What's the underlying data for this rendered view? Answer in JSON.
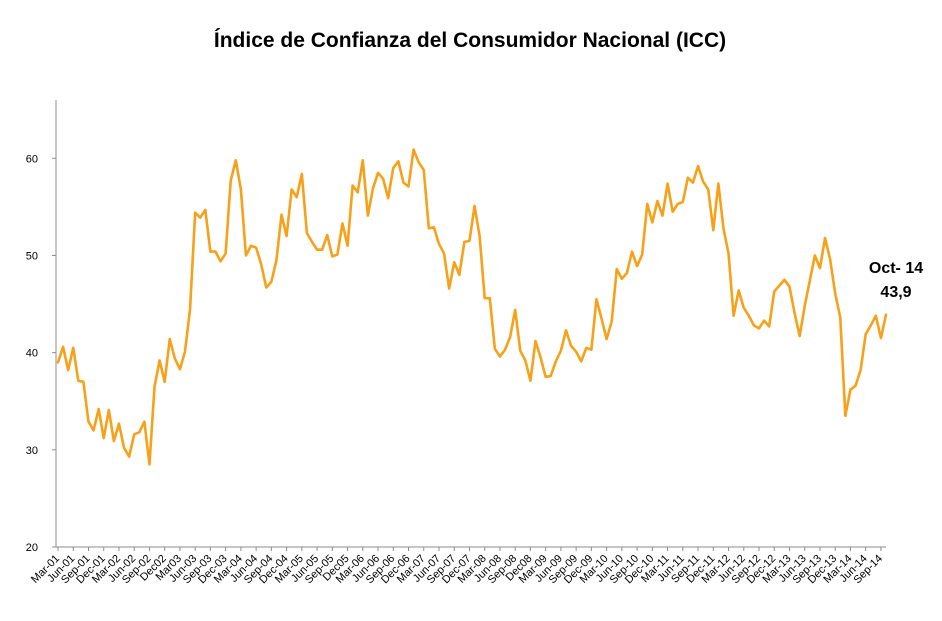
{
  "chart_data": {
    "type": "line",
    "title": "Índice de Confianza del Consumidor Nacional (ICC)",
    "xlabel": "",
    "ylabel": "",
    "ylim": [
      20,
      66
    ],
    "yticks": [
      20,
      30,
      40,
      50,
      60
    ],
    "grid": false,
    "legend": "none",
    "line_color": "#F7A11A",
    "x": [
      "Mar-01",
      "Apr-01",
      "May-01",
      "Jun-01",
      "Jul-01",
      "Aug-01",
      "Sep-01",
      "Oct-01",
      "Nov-01",
      "Dec-01",
      "Jan-02",
      "Feb-02",
      "Mar-02",
      "Apr-02",
      "May-02",
      "Jun-02",
      "Jul-02",
      "Aug-02",
      "Sep-02",
      "Oct-02",
      "Nov-02",
      "Dec-02",
      "Jan-03",
      "Feb-03",
      "Mar-03",
      "Apr-03",
      "May-03",
      "Jun-03",
      "Jul-03",
      "Aug-03",
      "Sep-03",
      "Oct-03",
      "Nov-03",
      "Dec-03",
      "Jan-04",
      "Feb-04",
      "Mar-04",
      "Apr-04",
      "May-04",
      "Jun-04",
      "Jul-04",
      "Aug-04",
      "Sep-04",
      "Oct-04",
      "Nov-04",
      "Dec-04",
      "Jan-05",
      "Feb-05",
      "Mar-05",
      "Apr-05",
      "May-05",
      "Jun-05",
      "Jul-05",
      "Aug-05",
      "Sep-05",
      "Oct-05",
      "Nov-05",
      "Dec-05",
      "Jan-06",
      "Feb-06",
      "Mar-06",
      "Apr-06",
      "May-06",
      "Jun-06",
      "Jul-06",
      "Aug-06",
      "Sep-06",
      "Oct-06",
      "Nov-06",
      "Dec-06",
      "Jan-07",
      "Feb-07",
      "Mar-07",
      "Apr-07",
      "May-07",
      "Jun-07",
      "Jul-07",
      "Aug-07",
      "Sep-07",
      "Oct-07",
      "Nov-07",
      "Dec-07",
      "Jan-08",
      "Feb-08",
      "Mar-08",
      "Apr-08",
      "May-08",
      "Jun-08",
      "Jul-08",
      "Aug-08",
      "Sep-08",
      "Oct-08",
      "Nov-08",
      "Dec-08",
      "Jan-09",
      "Feb-09",
      "Mar-09",
      "Apr-09",
      "May-09",
      "Jun-09",
      "Jul-09",
      "Aug-09",
      "Sep-09",
      "Oct-09",
      "Nov-09",
      "Dec-09",
      "Jan-10",
      "Feb-10",
      "Mar-10",
      "Apr-10",
      "May-10",
      "Jun-10",
      "Jul-10",
      "Aug-10",
      "Sep-10",
      "Oct-10",
      "Nov-10",
      "Dec-10",
      "Jan-11",
      "Feb-11",
      "Mar-11",
      "Apr-11",
      "May-11",
      "Jun-11",
      "Jul-11",
      "Aug-11",
      "Sep-11",
      "Oct-11",
      "Nov-11",
      "Dec-11",
      "Jan-12",
      "Feb-12",
      "Mar-12",
      "Apr-12",
      "May-12",
      "Jun-12",
      "Jul-12",
      "Aug-12",
      "Sep-12",
      "Oct-12",
      "Nov-12",
      "Dec-12",
      "Jan-13",
      "Feb-13",
      "Mar-13",
      "Apr-13",
      "May-13",
      "Jun-13",
      "Jul-13",
      "Aug-13",
      "Sep-13",
      "Oct-13",
      "Nov-13",
      "Dec-13",
      "Jan-14",
      "Feb-14",
      "Mar-14",
      "Apr-14",
      "May-14",
      "Jun-14",
      "Jul-14",
      "Aug-14",
      "Sep-14",
      "Oct-14"
    ],
    "xtick_labels": [
      "Mar-01",
      "Jun-01",
      "Sep-01",
      "Dec-01",
      "Mar-02",
      "Jun-02",
      "Sep-02",
      "Dec02",
      "Mar03",
      "Jun-03",
      "Sep-03",
      "Dec-03",
      "Mar-04",
      "Jun-04",
      "Sep-04",
      "Dec-04",
      "Mar-05",
      "Jun-05",
      "Sep-05",
      "Dec05",
      "Mar-06",
      "Jun-06",
      "Sep-06",
      "Dec-06",
      "Mar-07",
      "Jun-07",
      "Sep-07",
      "Dec-07",
      "Mar-08",
      "Jun-08",
      "Sep-08",
      "Dec08",
      "Mar-09",
      "Jun-09",
      "Sep-09",
      "Dec-09",
      "Mar-10",
      "Jun-10",
      "Sep-10",
      "Dec-10",
      "Mar-11",
      "Jun-11",
      "Sep-11",
      "Dec-11",
      "Mar-12",
      "Jun-12",
      "Sep-12",
      "Dec-12",
      "Mar-13",
      "Jun-13",
      "Sep-13",
      "Dec-13",
      "Mar-14",
      "Jun-14",
      "Sep-14"
    ],
    "series": [
      {
        "values": [
          39.0,
          40.6,
          38.2,
          40.5,
          37.1,
          37.0,
          32.9,
          32.0,
          34.2,
          31.2,
          34.1,
          30.9,
          32.7,
          30.2,
          29.3,
          31.6,
          31.8,
          32.9,
          28.5,
          36.5,
          39.2,
          37.0,
          41.4,
          39.4,
          38.3,
          40.1,
          44.5,
          54.4,
          53.9,
          54.7,
          50.4,
          50.4,
          49.4,
          50.2,
          57.7,
          59.8,
          56.8,
          50.0,
          51.0,
          50.8,
          49.1,
          46.7,
          47.3,
          49.5,
          54.2,
          52.0,
          56.8,
          56.0,
          58.4,
          52.3,
          51.4,
          50.6,
          50.6,
          52.1,
          49.9,
          50.1,
          53.3,
          51.0,
          57.2,
          56.5,
          59.8,
          54.1,
          56.9,
          58.5,
          57.9,
          55.9,
          59.0,
          59.7,
          57.5,
          57.1,
          60.9,
          59.6,
          58.8,
          52.8,
          52.9,
          51.2,
          50.2,
          46.6,
          49.3,
          48.0,
          51.4,
          51.5,
          55.1,
          52.0,
          45.6,
          45.6,
          40.4,
          39.6,
          40.3,
          41.6,
          44.4,
          40.2,
          39.2,
          37.1,
          41.2,
          39.5,
          37.5,
          37.6,
          39.1,
          40.2,
          42.3,
          40.7,
          40.1,
          39.1,
          40.5,
          40.3,
          45.5,
          43.5,
          41.4,
          43.2,
          48.6,
          47.6,
          48.2,
          50.4,
          48.9,
          50.1,
          55.3,
          53.4,
          55.6,
          54.1,
          57.4,
          54.5,
          55.3,
          55.5,
          58.0,
          57.5,
          59.2,
          57.6,
          56.8,
          52.6,
          57.4,
          52.8,
          50.2,
          43.8,
          46.4,
          44.6,
          43.8,
          42.8,
          42.5,
          43.3,
          42.7,
          46.3,
          46.9,
          47.5,
          46.8,
          44.1,
          41.7,
          44.8,
          47.4,
          50.0,
          48.7,
          51.8,
          49.6,
          46.1,
          43.6,
          33.5,
          36.2,
          36.6,
          38.2,
          41.9,
          42.8,
          43.8,
          41.5,
          43.9
        ]
      }
    ],
    "annotation": {
      "label": "Oct- 14",
      "value": "43,9"
    }
  }
}
